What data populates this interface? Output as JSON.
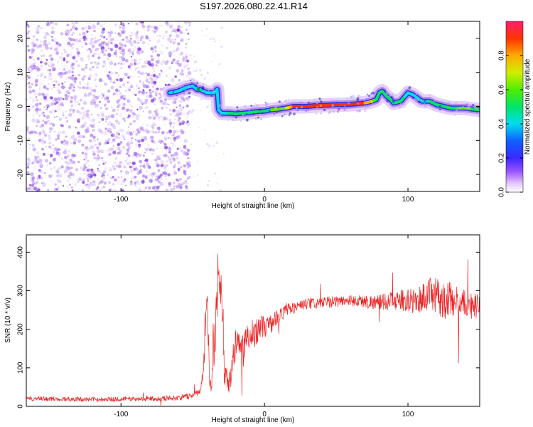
{
  "title": "S197.2026.080.22.41.R14",
  "colors": {
    "snr_line": "#ee2222",
    "scatter": "#8a2be2",
    "axis": "#000000"
  },
  "chart_data": [
    {
      "type": "heatmap",
      "name": "spectrogram",
      "xlabel": "Height of straight line (km)",
      "ylabel": "Frequency (Hz)",
      "xlim": [
        -166,
        150
      ],
      "ylim": [
        -25,
        25
      ],
      "xticks": [
        -100,
        0,
        100
      ],
      "yticks": [
        -20,
        -10,
        0,
        10,
        20
      ],
      "xtick_labels": [
        "-100",
        "0",
        "100"
      ],
      "ytick_labels": [
        "-20",
        "-10",
        "0",
        "10",
        "20"
      ],
      "noise_region_x": [
        -166,
        -52
      ],
      "ridge": {
        "x": [
          -66,
          -60,
          -55,
          -50,
          -47,
          -45,
          -40,
          -35,
          -33,
          -32,
          -30,
          -25,
          -20,
          -15,
          -10,
          -5,
          0,
          5,
          10,
          15,
          20,
          25,
          30,
          35,
          40,
          45,
          50,
          55,
          60,
          65,
          70,
          75,
          78,
          80,
          82,
          85,
          88,
          90,
          95,
          98,
          100,
          103,
          105,
          108,
          110,
          115,
          120,
          125,
          130,
          135,
          140,
          145,
          150
        ],
        "y": [
          4,
          4.5,
          5.5,
          6,
          5,
          5,
          4,
          4,
          5,
          -1,
          -2,
          -2,
          -2.2,
          -2,
          -1.8,
          -1.5,
          -1.4,
          -1,
          -0.8,
          -0.5,
          0,
          0,
          0,
          0.2,
          0.3,
          0.4,
          0.5,
          0.5,
          0.6,
          0.8,
          1,
          1.5,
          2,
          4,
          4.5,
          3,
          2,
          1,
          1.5,
          3,
          4,
          3.5,
          3,
          2,
          1.5,
          1.5,
          0.5,
          0,
          -0.5,
          -0.5,
          -0.5,
          -0.8,
          -1
        ],
        "amp": [
          0.3,
          0.35,
          0.4,
          0.35,
          0.4,
          0.45,
          0.35,
          0.3,
          0.35,
          0.35,
          0.3,
          0.4,
          0.45,
          0.45,
          0.5,
          0.5,
          0.45,
          0.5,
          0.55,
          0.6,
          0.8,
          0.85,
          0.9,
          0.9,
          0.85,
          0.8,
          0.85,
          0.9,
          0.9,
          0.85,
          0.8,
          0.7,
          0.5,
          0.45,
          0.4,
          0.45,
          0.5,
          0.4,
          0.45,
          0.4,
          0.35,
          0.4,
          0.4,
          0.35,
          0.4,
          0.4,
          0.45,
          0.45,
          0.5,
          0.5,
          0.55,
          0.5,
          0.45
        ]
      }
    },
    {
      "type": "colorbar",
      "name": "amplitude-colorbar",
      "label": "Normalized spectral amplitude",
      "range": [
        0,
        1
      ],
      "ticks": [
        0.0,
        0.2,
        0.4,
        0.6,
        0.8
      ],
      "tick_labels": [
        "0.0",
        "0.2",
        "0.4",
        "0.6",
        "0.8"
      ]
    },
    {
      "type": "line",
      "name": "snr-plot",
      "xlabel": "Height of straight line (km)",
      "ylabel": "SNR (10 * v/v)",
      "xlim": [
        -166,
        150
      ],
      "ylim": [
        0,
        445
      ],
      "xticks": [
        -100,
        0,
        100
      ],
      "yticks": [
        0,
        100,
        200,
        300,
        400
      ],
      "xtick_labels": [
        "-100",
        "0",
        "100"
      ],
      "ytick_labels": [
        "0",
        "100",
        "200",
        "300",
        "400"
      ],
      "series": [
        {
          "name": "SNR",
          "envelope": {
            "x": [
              -166,
              -120,
              -80,
              -60,
              -50,
              -45,
              -43,
              -42,
              -41,
              -40,
              -39,
              -38,
              -37,
              -35,
              -33,
              -31,
              -29,
              -28,
              -27,
              -25,
              -23,
              -21,
              -19,
              -17,
              -15,
              -13,
              -10,
              -7,
              -5,
              -3,
              0,
              5,
              10,
              15,
              20,
              25,
              30,
              40,
              50,
              60,
              70,
              80,
              90,
              100,
              105,
              110,
              115,
              120,
              125,
              130,
              135,
              140,
              145,
              150
            ],
            "y": [
              20,
              18,
              20,
              22,
              28,
              40,
              80,
              150,
              250,
              280,
              160,
              60,
              80,
              150,
              280,
              320,
              250,
              100,
              80,
              60,
              90,
              140,
              170,
              160,
              150,
              170,
              180,
              190,
              200,
              210,
              205,
              215,
              235,
              250,
              255,
              262,
              265,
              268,
              272,
              275,
              272,
              270,
              274,
              276,
              270,
              282,
              290,
              285,
              275,
              280,
              270,
              265,
              262,
              260
            ],
            "spread": [
              6,
              6,
              6,
              7,
              8,
              10,
              20,
              40,
              50,
              50,
              40,
              30,
              40,
              60,
              60,
              50,
              60,
              40,
              30,
              30,
              40,
              50,
              50,
              40,
              40,
              40,
              40,
              40,
              35,
              30,
              30,
              25,
              20,
              20,
              15,
              15,
              15,
              15,
              15,
              15,
              18,
              20,
              25,
              30,
              35,
              40,
              45,
              50,
              50,
              45,
              40,
              40,
              35,
              30
            ]
          }
        }
      ]
    }
  ]
}
